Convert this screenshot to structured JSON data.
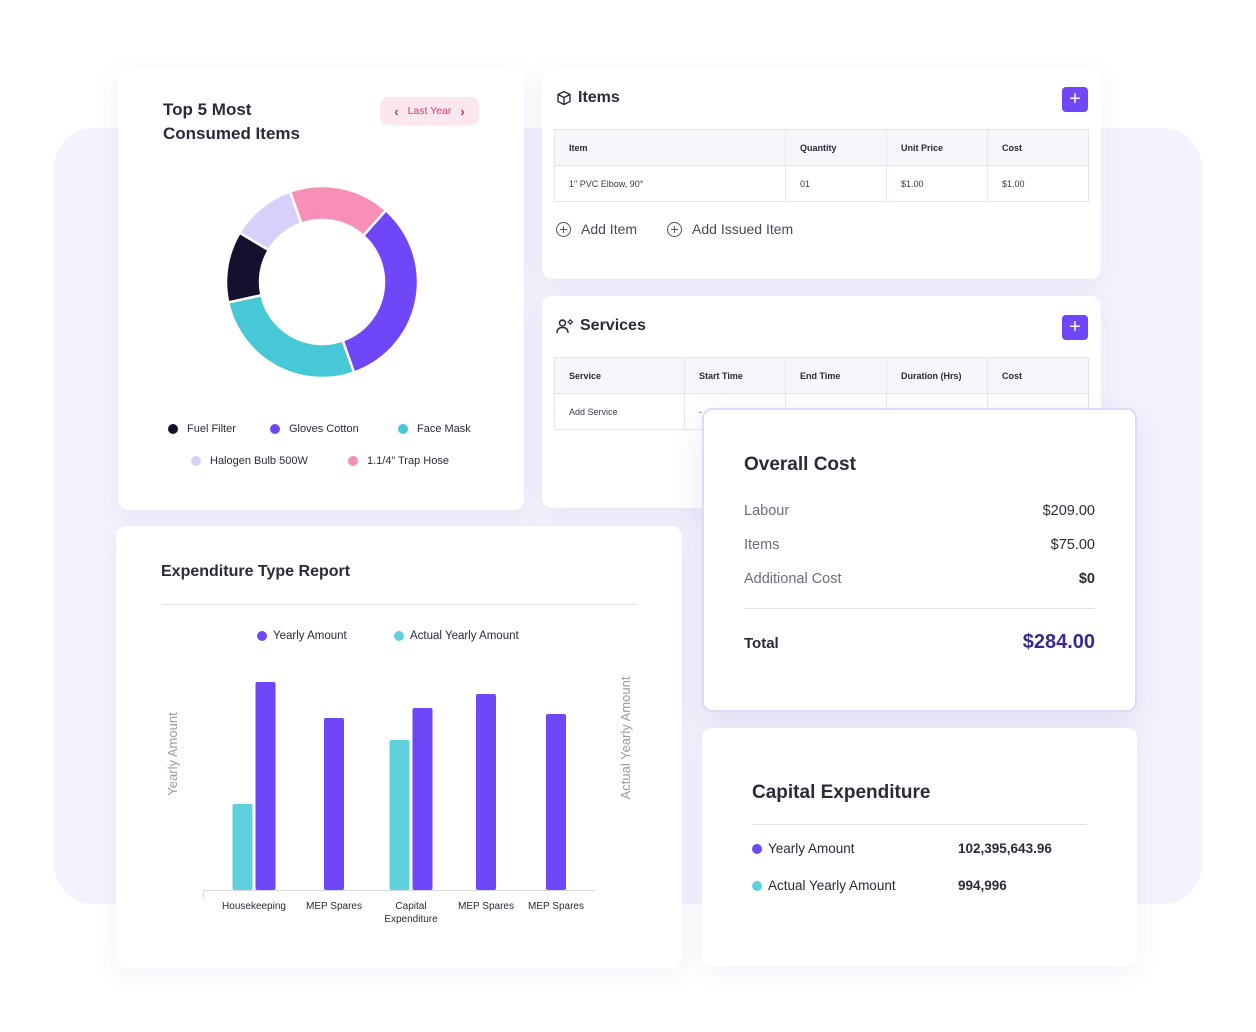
{
  "colors": {
    "accent": "#6f46f8",
    "fuel_filter": "#14102e",
    "gloves_cotton": "#6f46f8",
    "face_mask": "#46c8d6",
    "halogen_bulb": "#d7d0fb",
    "trap_hose": "#f78fb6",
    "yearly": "#6f46f8",
    "actual_yearly": "#5ed1dd"
  },
  "donut_card": {
    "title_line1": "Top 5 Most",
    "title_line2": "Consumed Items",
    "period": "Last Year",
    "prev_icon": "chevron-left-icon",
    "next_icon": "chevron-right-icon"
  },
  "items_card": {
    "title": "Items",
    "icon": "box-icon",
    "add_icon": "plus-icon",
    "columns": [
      "Item",
      "Quantity",
      "Unit Price",
      "Cost"
    ],
    "rows": [
      [
        "1\" PVC Elbow, 90°",
        "01",
        "$1.00",
        "$1.00"
      ]
    ],
    "add_item": "Add Item",
    "add_issued_item": "Add Issued Item"
  },
  "services_card": {
    "title": "Services",
    "icon": "worker-icon",
    "add_icon": "plus-icon",
    "columns": [
      "Service",
      "Start Time",
      "End Time",
      "Duration (Hrs)",
      "Cost"
    ],
    "rows": [
      [
        "Add Service",
        "-",
        "",
        "",
        ""
      ]
    ]
  },
  "overall_cost": {
    "title": "Overall Cost",
    "lines": [
      {
        "label": "Labour",
        "value": "$209.00"
      },
      {
        "label": "Items",
        "value": "$75.00"
      },
      {
        "label": "Additional Cost",
        "value": "$0"
      }
    ],
    "total_label": "Total",
    "total_value": "$284.00"
  },
  "expenditure_card": {
    "title": "Expenditure Type Report"
  },
  "capital_card": {
    "title": "Capital Expenditure",
    "rows": [
      {
        "label": "Yearly Amount",
        "value": "102,395,643.96"
      },
      {
        "label": "Actual Yearly Amount",
        "value": "994,996"
      }
    ]
  },
  "chart_data": [
    {
      "type": "pie",
      "title": "Top 5 Most Consumed Items",
      "labels": [
        "Fuel Filter",
        "Gloves Cotton",
        "Face Mask",
        "Halogen Bulb 500W",
        "1.1/4” Trap Hose"
      ],
      "values": [
        12,
        33,
        27,
        11,
        17
      ],
      "donut": true
    },
    {
      "type": "bar",
      "title": "Expenditure Type Report",
      "categories": [
        "Housekeeping",
        "MEP Spares",
        "Capital\nExpenditure",
        "MEP Spares",
        "MEP Spares"
      ],
      "series": [
        {
          "name": "Yearly Amount",
          "values": [
            208,
            172,
            182,
            196,
            176
          ]
        },
        {
          "name": "Actual Yearly Amount",
          "values": [
            86,
            null,
            150,
            null,
            null
          ]
        }
      ],
      "ylabel": "Yearly Amount",
      "y2label": "Actual Yearly Amount",
      "ylim": [
        0,
        220
      ],
      "legend": "top"
    }
  ]
}
